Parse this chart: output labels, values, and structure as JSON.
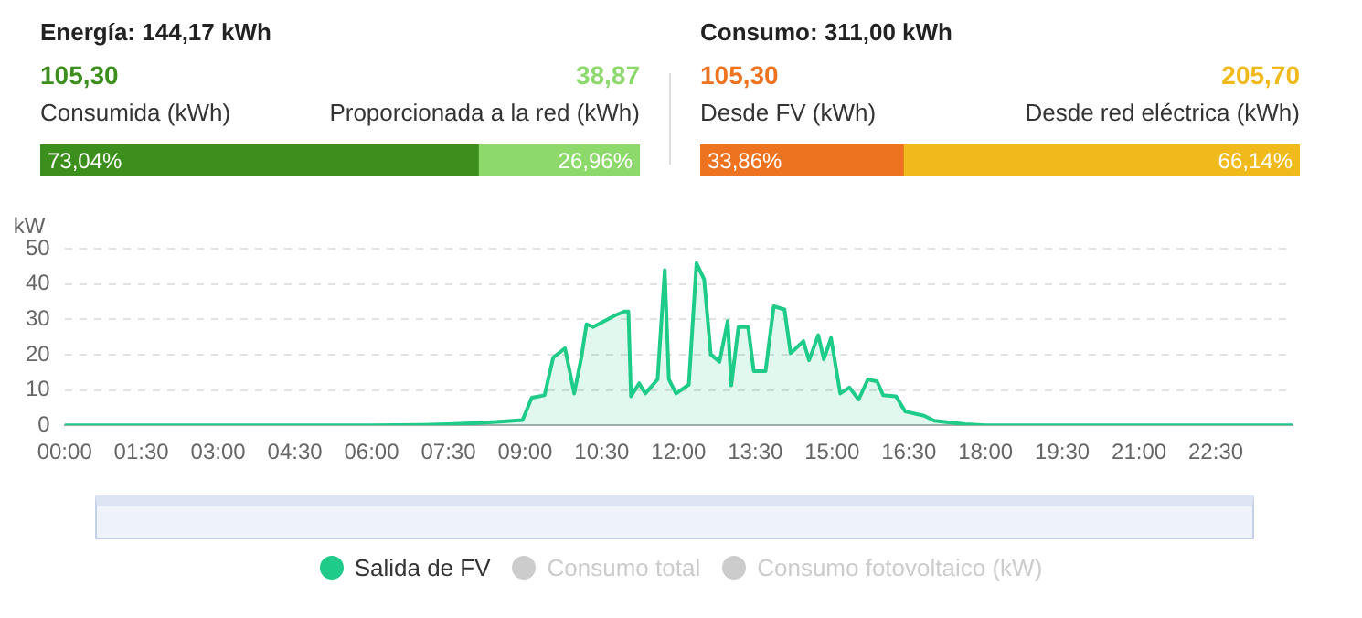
{
  "chart_data": [
    {
      "type": "bar",
      "title": "Energía: 144,17 kWh",
      "orientation": "horizontal",
      "stacked": true,
      "categories": [
        null
      ],
      "xlim": [
        0,
        100
      ],
      "tick_labels": false,
      "legend": "top",
      "annotations": [
        "105,30",
        "38,87"
      ],
      "series": [
        {
          "name": "Consumida (kWh)",
          "color": "#3c8f1c",
          "values": [
            73.04
          ],
          "value_labels": [
            "73,04%"
          ]
        },
        {
          "name": "Proporcionada a la red (kWh)",
          "color": "#8ed96c",
          "values": [
            26.96
          ],
          "value_labels": [
            "26,96%"
          ]
        }
      ]
    },
    {
      "type": "bar",
      "title": "Consumo: 311,00 kWh",
      "orientation": "horizontal",
      "stacked": true,
      "categories": [
        null
      ],
      "xlim": [
        0,
        100
      ],
      "tick_labels": false,
      "legend": "top",
      "annotations": [
        "105,30",
        "205,70"
      ],
      "series": [
        {
          "name": "Desde FV (kWh)",
          "color": "#ee7320",
          "values": [
            33.86
          ],
          "value_labels": [
            "33,86%"
          ]
        },
        {
          "name": "Desde red eléctrica (kWh)",
          "color": "#f0b91c",
          "values": [
            66.14
          ],
          "value_labels": [
            "66,14%"
          ]
        }
      ]
    },
    {
      "type": "area",
      "ylabel": "kW",
      "xlim": [
        0,
        24
      ],
      "ylim": [
        0,
        50
      ],
      "yticks": [
        0,
        10,
        20,
        30,
        40,
        50
      ],
      "xticks": [
        {
          "value": 0,
          "label": "00:00"
        },
        {
          "value": 1.5,
          "label": "01:30"
        },
        {
          "value": 3,
          "label": "03:00"
        },
        {
          "value": 4.5,
          "label": "04:30"
        },
        {
          "value": 6,
          "label": "06:00"
        },
        {
          "value": 7.5,
          "label": "07:30"
        },
        {
          "value": 9,
          "label": "09:00"
        },
        {
          "value": 10.5,
          "label": "10:30"
        },
        {
          "value": 12,
          "label": "12:00"
        },
        {
          "value": 13.5,
          "label": "13:30"
        },
        {
          "value": 15,
          "label": "15:00"
        },
        {
          "value": 16.5,
          "label": "16:30"
        },
        {
          "value": 18,
          "label": "18:00"
        },
        {
          "value": 19.5,
          "label": "19:30"
        },
        {
          "value": 21,
          "label": "21:00"
        },
        {
          "value": 22.5,
          "label": "22:30"
        }
      ],
      "grid": "y",
      "legend": "bottom",
      "marker": "none",
      "line_style": "solid",
      "series": [
        {
          "name": "Salida de FV",
          "color": "#1ecb88",
          "x": [
            0,
            0.5,
            1,
            6,
            7,
            7.5,
            8,
            8.5,
            8.95,
            9.13,
            9.38,
            9.55,
            9.78,
            9.96,
            10.1,
            10.2,
            10.33,
            10.76,
            10.94,
            11.02,
            11.07,
            11.23,
            11.35,
            11.59,
            11.73,
            11.81,
            11.95,
            12.2,
            12.35,
            12.5,
            12.63,
            12.8,
            12.96,
            13.03,
            13.17,
            13.36,
            13.47,
            13.7,
            13.86,
            14.07,
            14.19,
            14.44,
            14.55,
            14.73,
            14.84,
            14.98,
            15.16,
            15.34,
            15.52,
            15.7,
            15.88,
            16.0,
            16.25,
            16.43,
            16.8,
            17.0,
            17.6,
            18.0,
            24
          ],
          "values": [
            0,
            0,
            0,
            0,
            0.1,
            0.3,
            0.6,
            1.0,
            1.5,
            7.8,
            8.5,
            19.2,
            21.8,
            9,
            19.2,
            28.6,
            27.8,
            31.1,
            32.2,
            32.2,
            8.2,
            11.9,
            9,
            13,
            43.9,
            13,
            9,
            11.5,
            45.9,
            41.3,
            20,
            18,
            29.5,
            11.3,
            27.8,
            27.8,
            15.3,
            15.3,
            33.7,
            32.8,
            20.4,
            23.8,
            18.4,
            25.5,
            18.7,
            24.7,
            9,
            10.7,
            7.3,
            13,
            12.4,
            8.5,
            8.2,
            3.9,
            2.7,
            1.3,
            0.3,
            0,
            0
          ]
        },
        {
          "name": "Consumo total",
          "color": "#cccccc"
        },
        {
          "name": "Consumo fotovoltaico (kW)",
          "color": "#cccccc"
        }
      ]
    }
  ]
}
